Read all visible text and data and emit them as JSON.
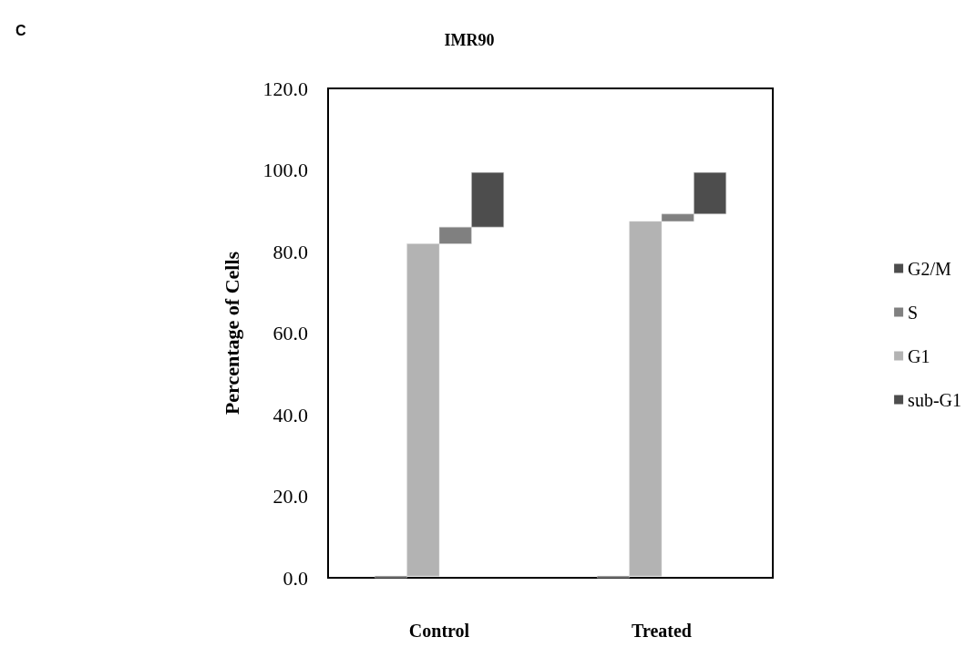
{
  "chart_data": {
    "type": "bar",
    "title": "IMR90",
    "ylabel": "Percentage of Cells",
    "annotations": [
      "C"
    ],
    "categories": [
      "Control",
      "Treated"
    ],
    "series": [
      {
        "name": "sub-G1",
        "color": "#4d4d4d",
        "values": [
          0.4,
          0.4
        ],
        "base": [
          0,
          0
        ]
      },
      {
        "name": "G1",
        "color": "#b3b3b3",
        "values": [
          81.5,
          87.0
        ],
        "base": [
          0.4,
          0.4
        ]
      },
      {
        "name": "S",
        "color": "#808080",
        "values": [
          4.1,
          1.8
        ],
        "base": [
          81.9,
          87.4
        ]
      },
      {
        "name": "G2/M",
        "color": "#4d4d4d",
        "values": [
          13.4,
          10.2
        ],
        "base": [
          86.0,
          89.2
        ]
      }
    ],
    "ylim": [
      0,
      120
    ],
    "yticks": [
      {
        "value": 0,
        "label": "0.0"
      },
      {
        "value": 20,
        "label": "20.0"
      },
      {
        "value": 40,
        "label": "40.0"
      },
      {
        "value": 60,
        "label": "60.0"
      },
      {
        "value": 80,
        "label": "80.0"
      },
      {
        "value": 100,
        "label": "100.0"
      },
      {
        "value": 120,
        "label": "120.0"
      }
    ],
    "grid": false,
    "legend": "right"
  }
}
